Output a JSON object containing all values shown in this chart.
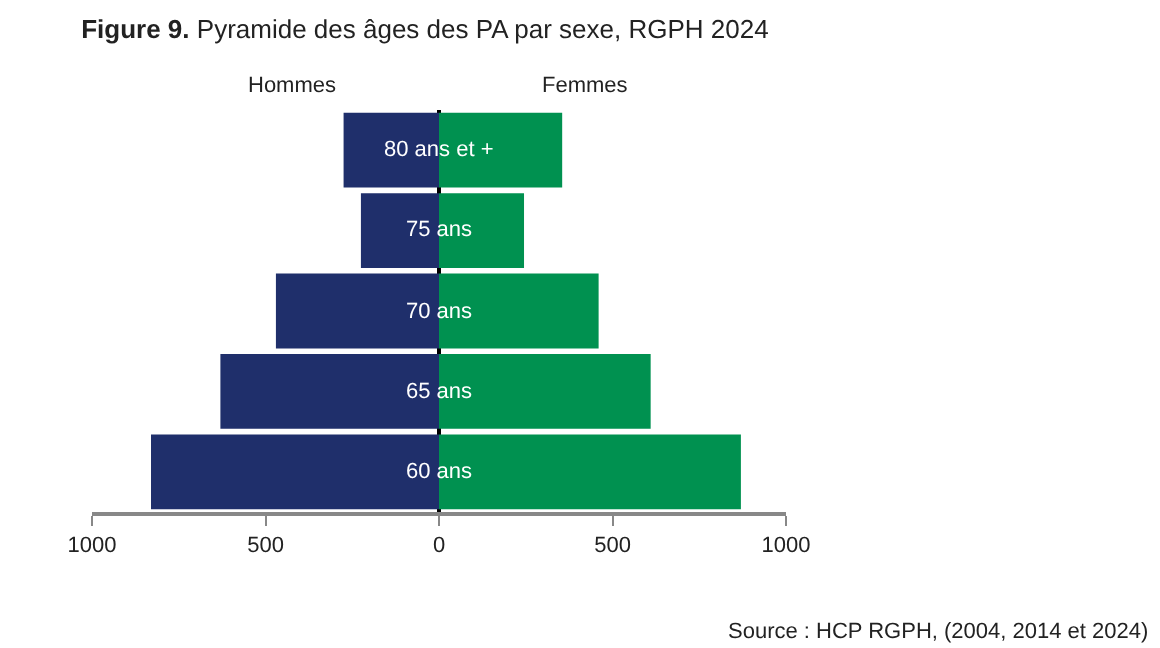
{
  "chart_data": {
    "type": "bar",
    "orientation": "horizontal",
    "title": "Figure 9. Pyramide des âges des PA par sexe, RGPH 2024",
    "categories": [
      "80 ans et +",
      "75 ans",
      "70 ans",
      "65 ans",
      "60 ans"
    ],
    "series": [
      {
        "name": "Hommes",
        "color": "#1f2f6b",
        "values": [
          -275,
          -225,
          -470,
          -630,
          -830
        ]
      },
      {
        "name": "Femmes",
        "color": "#009150",
        "values": [
          355,
          245,
          460,
          610,
          870
        ]
      }
    ],
    "xlim": [
      -1000,
      1000
    ],
    "xticks": [
      {
        "value": -1000,
        "label": "1000"
      },
      {
        "value": -500,
        "label": "500"
      },
      0,
      500,
      1000
    ],
    "annotations": [
      "Source : HCP RGPH, (2004, 2014 et 2024)"
    ],
    "stacked": true,
    "legend": false
  }
}
